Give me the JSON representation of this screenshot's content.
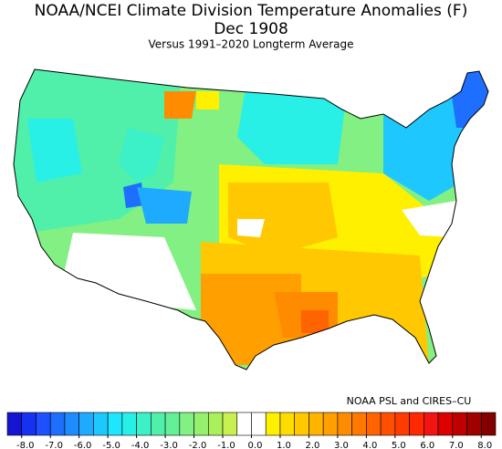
{
  "header": {
    "title": "NOAA/NCEI Climate Division Temperature Anomalies (F)",
    "date": "Dec 1908",
    "subtitle": "Versus 1991–2020 Longterm Average"
  },
  "credit": "NOAA PSL and CIRES–CU",
  "colorbar": {
    "colors": [
      "#1414d2",
      "#1432f0",
      "#1e50ff",
      "#1e6eff",
      "#1e8cff",
      "#1eaaff",
      "#1ec8ff",
      "#1ee6ff",
      "#28f0e6",
      "#3cf0c8",
      "#50f0aa",
      "#64f096",
      "#82f082",
      "#96f06e",
      "#aaf05a",
      "#c8f050",
      "#ffffff",
      "#ffffff",
      "#fff000",
      "#ffdc00",
      "#ffc800",
      "#ffb400",
      "#ffa000",
      "#ff8c00",
      "#ff7800",
      "#ff6400",
      "#ff5000",
      "#ff3c00",
      "#ff2800",
      "#f01414",
      "#dc0000",
      "#be0000",
      "#a00000",
      "#820000"
    ],
    "ticks": [
      {
        "value": -8,
        "label": "-8.0"
      },
      {
        "value": -7,
        "label": "-7.0"
      },
      {
        "value": -6,
        "label": "-6.0"
      },
      {
        "value": -5,
        "label": "-5.0"
      },
      {
        "value": -4,
        "label": "-4.0"
      },
      {
        "value": -3,
        "label": "-3.0"
      },
      {
        "value": -2,
        "label": "-2.0"
      },
      {
        "value": -1,
        "label": "-1.0"
      },
      {
        "value": 0,
        "label": "0.0"
      },
      {
        "value": 1,
        "label": "1.0"
      },
      {
        "value": 2,
        "label": "2.0"
      },
      {
        "value": 3,
        "label": "3.0"
      },
      {
        "value": 4,
        "label": "4.0"
      },
      {
        "value": 5,
        "label": "5.0"
      },
      {
        "value": 6,
        "label": "6.0"
      },
      {
        "value": 7,
        "label": "7.0"
      },
      {
        "value": 8,
        "label": "8.0"
      }
    ]
  }
}
